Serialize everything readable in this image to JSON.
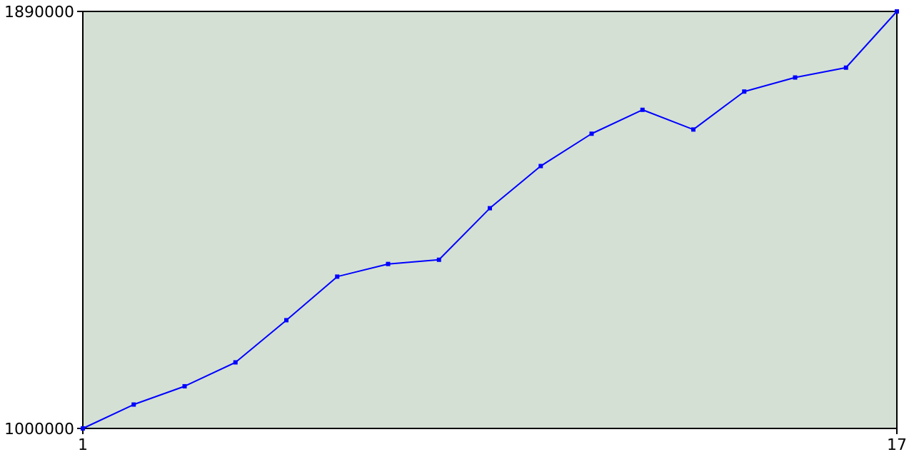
{
  "chart_data": {
    "type": "line",
    "x": [
      1,
      2,
      3,
      4,
      5,
      6,
      7,
      8,
      9,
      10,
      11,
      12,
      13,
      14,
      15,
      16,
      17
    ],
    "series": [
      {
        "color": "#0000ff",
        "values": [
          1000000,
          1051000,
          1090000,
          1141000,
          1231000,
          1324000,
          1351000,
          1360000,
          1470000,
          1560000,
          1629000,
          1680000,
          1638000,
          1719000,
          1749000,
          1770000,
          1890000
        ]
      }
    ],
    "xlim": [
      1,
      17
    ],
    "xticks": [
      1,
      17
    ],
    "ylim": [
      1000000,
      1890000
    ],
    "yticks": [
      1000000,
      1890000
    ],
    "marker": "square",
    "line_style": "solid",
    "grid": false
  }
}
